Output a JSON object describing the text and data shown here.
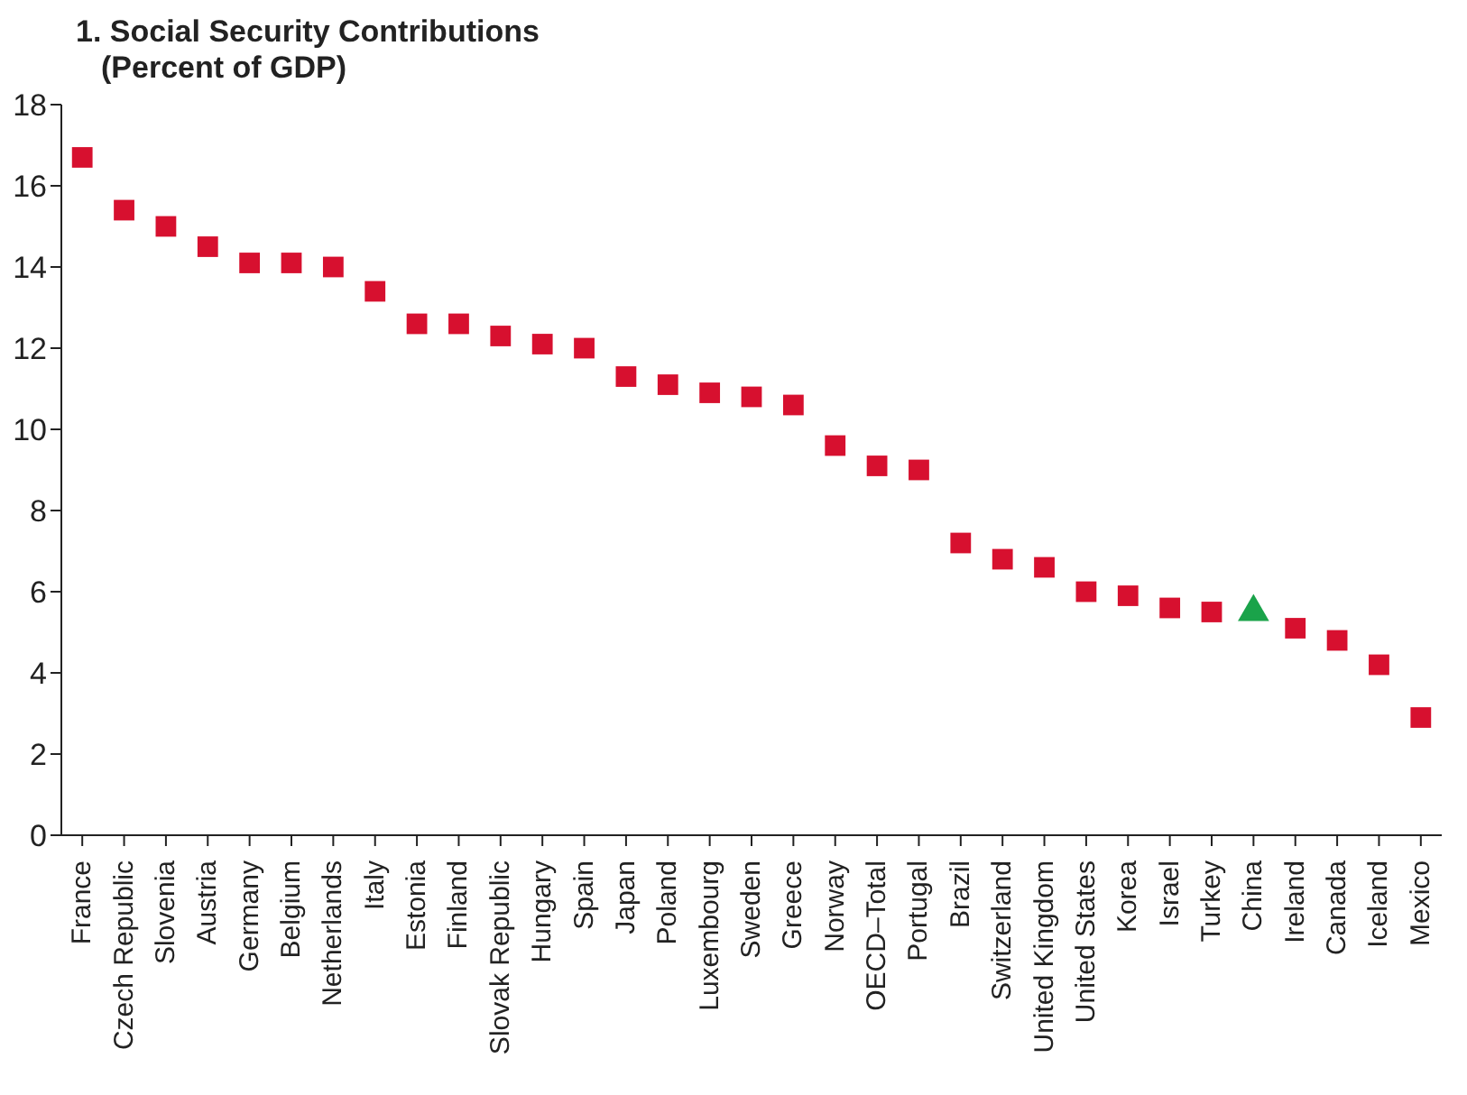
{
  "chart_data": {
    "type": "scatter",
    "title": "1. Social Security Contributions",
    "subtitle": "(Percent of GDP)",
    "categories": [
      "France",
      "Czech Republic",
      "Slovenia",
      "Austria",
      "Germany",
      "Belgium",
      "Netherlands",
      "Italy",
      "Estonia",
      "Finland",
      "Slovak Republic",
      "Hungary",
      "Spain",
      "Japan",
      "Poland",
      "Luxembourg",
      "Sweden",
      "Greece",
      "Norway",
      "OECD–Total",
      "Portugal",
      "Brazil",
      "Switzerland",
      "United Kingdom",
      "United States",
      "Korea",
      "Israel",
      "Turkey",
      "China",
      "Ireland",
      "Canada",
      "Iceland",
      "Mexico"
    ],
    "series": [
      {
        "color": "#d7102f",
        "marker": "square",
        "values": [
          16.7,
          15.4,
          15.0,
          14.5,
          14.1,
          14.1,
          14.0,
          13.4,
          12.6,
          12.6,
          12.3,
          12.1,
          12.0,
          11.3,
          11.1,
          10.9,
          10.8,
          10.6,
          9.6,
          9.1,
          9.0,
          7.2,
          6.8,
          6.6,
          6.0,
          5.9,
          5.6,
          5.5,
          null,
          5.1,
          4.8,
          4.2,
          2.9
        ]
      },
      {
        "color": "#1aa34a",
        "marker": "triangle",
        "values": [
          null,
          null,
          null,
          null,
          null,
          null,
          null,
          null,
          null,
          null,
          null,
          null,
          null,
          null,
          null,
          null,
          null,
          null,
          null,
          null,
          null,
          null,
          null,
          null,
          null,
          null,
          null,
          null,
          5.5,
          null,
          null,
          null,
          null
        ]
      }
    ],
    "ylim": [
      0,
      18
    ],
    "yticks": [
      0,
      2,
      4,
      6,
      8,
      10,
      12,
      14,
      16,
      18
    ],
    "grid": false,
    "legend": false
  }
}
